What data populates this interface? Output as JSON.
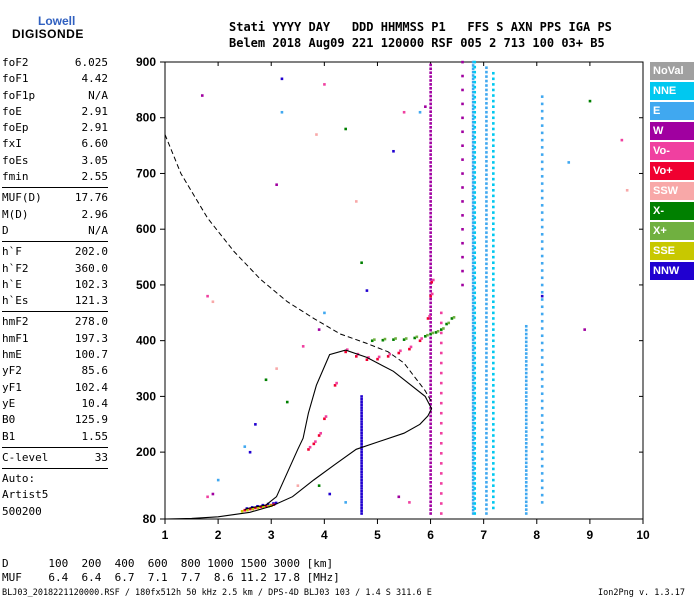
{
  "logo": {
    "line1": "Lowell",
    "line2": "DIGISONDE"
  },
  "header": {
    "row1": "Stati YYYY DAY   DDD HHMMSS P1   FFS S AXN PPS IGA PS",
    "row2": "Belem 2018 Aug09 221 120000 RSF 005 2 713 100 03+ B5"
  },
  "params": {
    "g1": [
      [
        "foF2",
        "6.025"
      ],
      [
        "foF1",
        "4.42"
      ],
      [
        "foF1p",
        "N/A"
      ],
      [
        "foE",
        "2.91"
      ],
      [
        "foEp",
        "2.91"
      ],
      [
        "fxI",
        "6.60"
      ],
      [
        "foEs",
        "3.05"
      ],
      [
        "fmin",
        "2.55"
      ]
    ],
    "g2": [
      [
        "MUF(D)",
        "17.76"
      ],
      [
        "M(D)",
        "2.96"
      ],
      [
        "D",
        "N/A"
      ]
    ],
    "g3": [
      [
        "h`F",
        "202.0"
      ],
      [
        "h`F2",
        "360.0"
      ],
      [
        "h`E",
        "102.3"
      ],
      [
        "h`Es",
        "121.3"
      ]
    ],
    "g4": [
      [
        "hmF2",
        "278.0"
      ],
      [
        "hmF1",
        "197.3"
      ],
      [
        "hmE",
        "100.7"
      ],
      [
        "yF2",
        "85.6"
      ],
      [
        "yF1",
        "102.4"
      ],
      [
        "yE",
        "10.4"
      ],
      [
        "B0",
        "125.9"
      ],
      [
        "B1",
        "1.55"
      ]
    ],
    "g5": [
      [
        "C-level",
        "33"
      ]
    ],
    "g6": [
      [
        "Auto:",
        ""
      ],
      [
        "Artist5",
        ""
      ],
      [
        "500200",
        ""
      ]
    ]
  },
  "legend": [
    {
      "label": "NoVal",
      "color": "#a0a0a0"
    },
    {
      "label": "NNE",
      "color": "#00c8f0"
    },
    {
      "label": "E",
      "color": "#40a8f0"
    },
    {
      "label": "W",
      "color": "#a000a0"
    },
    {
      "label": "Vo-",
      "color": "#f040a0"
    },
    {
      "label": "Vo+",
      "color": "#f00030"
    },
    {
      "label": "SSW",
      "color": "#f8a8a8"
    },
    {
      "label": "X-",
      "color": "#008000"
    },
    {
      "label": "X+",
      "color": "#70b040"
    },
    {
      "label": "SSE",
      "color": "#c8c800"
    },
    {
      "label": "NNW",
      "color": "#2000d0"
    }
  ],
  "footer": {
    "row1": "D      100  200  400  600  800 1000 1500 3000 [km]",
    "row2": "MUF    6.4  6.4  6.7  7.1  7.7  8.6 11.2 17.8 [MHz]",
    "info": "BLJ03_2018221120000.RSF / 180fx512h 50 kHz 2.5 km / DPS-4D BLJ03 103 / 1.4 S 311.6 E",
    "version": "Ion2Png v. 1.3.17"
  },
  "chart_data": {
    "type": "scatter",
    "xlabel": "",
    "ylabel": "",
    "xlim": [
      1,
      10
    ],
    "ylim": [
      80,
      900
    ],
    "xticks": [
      1,
      2,
      3,
      4,
      5,
      6,
      7,
      8,
      9,
      10
    ],
    "yticks": [
      80,
      200,
      300,
      400,
      500,
      600,
      700,
      800,
      900
    ],
    "grid": false,
    "legend_position": "right",
    "profile_curve": [
      [
        1.0,
        80
      ],
      [
        1.5,
        81
      ],
      [
        2.0,
        84
      ],
      [
        2.6,
        92
      ],
      [
        3.0,
        103
      ],
      [
        3.4,
        120
      ],
      [
        3.8,
        150
      ],
      [
        4.2,
        178
      ],
      [
        4.6,
        205
      ],
      [
        5.0,
        218
      ],
      [
        5.5,
        234
      ],
      [
        5.8,
        250
      ],
      [
        5.95,
        265
      ],
      [
        6.02,
        278
      ],
      [
        5.9,
        300
      ],
      [
        5.3,
        345
      ],
      [
        4.8,
        370
      ],
      [
        4.4,
        383
      ],
      [
        4.1,
        375
      ],
      [
        3.85,
        320
      ],
      [
        3.7,
        270
      ],
      [
        3.6,
        225
      ],
      [
        3.5,
        205
      ],
      [
        3.1,
        120
      ],
      [
        2.9,
        105
      ],
      [
        2.6,
        100
      ],
      [
        2.5,
        97
      ]
    ],
    "muf_curve": [
      [
        1.0,
        770
      ],
      [
        1.3,
        700
      ],
      [
        1.8,
        620
      ],
      [
        2.3,
        560
      ],
      [
        2.8,
        510
      ],
      [
        3.3,
        470
      ],
      [
        3.8,
        440
      ],
      [
        4.3,
        412
      ],
      [
        4.8,
        395
      ],
      [
        5.2,
        380
      ],
      [
        5.5,
        360
      ],
      [
        5.7,
        335
      ],
      [
        5.9,
        310
      ],
      [
        6.02,
        290
      ]
    ],
    "o_trace": [
      [
        3.7,
        205
      ],
      [
        3.8,
        215
      ],
      [
        3.9,
        230
      ],
      [
        4.0,
        260
      ],
      [
        4.2,
        320
      ],
      [
        4.4,
        380
      ],
      [
        4.6,
        372
      ],
      [
        4.8,
        366
      ],
      [
        5.0,
        367
      ],
      [
        5.2,
        372
      ],
      [
        5.4,
        378
      ],
      [
        5.6,
        385
      ],
      [
        5.8,
        400
      ],
      [
        5.95,
        440
      ],
      [
        6.0,
        480
      ],
      [
        6.02,
        505
      ]
    ],
    "x_trace": [
      [
        4.9,
        400
      ],
      [
        5.1,
        401
      ],
      [
        5.3,
        402
      ],
      [
        5.5,
        402
      ],
      [
        5.7,
        405
      ],
      [
        5.9,
        408
      ],
      [
        6.0,
        412
      ],
      [
        6.1,
        415
      ],
      [
        6.2,
        420
      ],
      [
        6.3,
        430
      ],
      [
        6.4,
        440
      ]
    ],
    "e_trace": [
      [
        2.5,
        96
      ],
      [
        2.6,
        98
      ],
      [
        2.7,
        100
      ],
      [
        2.8,
        102
      ],
      [
        2.9,
        104
      ],
      [
        3.0,
        105
      ],
      [
        3.05,
        106
      ]
    ]
  }
}
